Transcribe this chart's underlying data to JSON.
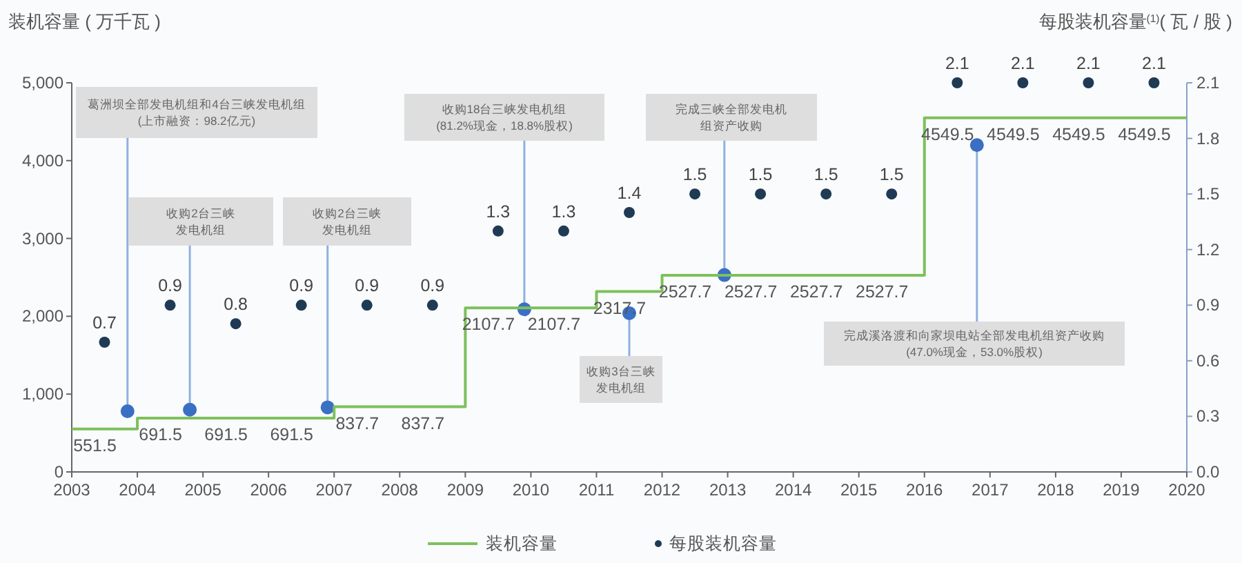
{
  "chart_data": {
    "type": "step",
    "ylabel": "装机容量 ( 万千瓦 )",
    "y2label": "每股装机容量$^{(1)}$( 瓦 / 股 )",
    "xlim": [
      2003,
      2020
    ],
    "xticks": [
      2003,
      2004,
      2005,
      2006,
      2007,
      2008,
      2009,
      2010,
      2011,
      2012,
      2013,
      2014,
      2015,
      2016,
      2017,
      2018,
      2019,
      2020
    ],
    "ylim": [
      0,
      5000
    ],
    "yticks": [
      0,
      {
        "value": 1000,
        "label": "1,000"
      },
      {
        "value": 2000,
        "label": "2,000"
      },
      {
        "value": 3000,
        "label": "3,000"
      },
      {
        "value": 4000,
        "label": "4,000"
      },
      {
        "value": 5000,
        "label": "5,000"
      }
    ],
    "y2lim": [
      0,
      2.1
    ],
    "y2ticks": [
      {
        "value": 0,
        "label": "0.0"
      },
      0.3,
      0.6,
      0.9,
      1.2,
      1.5,
      1.8,
      2.1
    ],
    "series": [
      {
        "name": "装机容量",
        "color": "#7cc15b",
        "x": [
          2003,
          2003.5,
          2004.5,
          2005.5,
          2006.5,
          2007.5,
          2008.5,
          2009.5,
          2010.5,
          2011.5,
          2012.5,
          2013.5,
          2014.5,
          2015.5,
          2016.5,
          2017.5,
          2018.5,
          2019.5,
          2020
        ],
        "values": [
          551.5,
          551.5,
          691.5,
          691.5,
          691.5,
          837.7,
          837.7,
          2107.7,
          2107.7,
          2317.7,
          2527.7,
          2527.7,
          2527.7,
          2527.7,
          4549.5,
          4549.5,
          4549.5,
          4549.5,
          4549.5
        ],
        "value_labels": [
          null,
          "551.5",
          "691.5",
          "691.5",
          "691.5",
          "837.7",
          "837.7",
          "2107.7",
          "2107.7",
          "2317.7",
          "2527.7",
          "2527.7",
          "2527.7",
          "2527.7",
          "4549.5",
          "4549.5",
          "4549.5",
          "4549.5",
          null
        ]
      },
      {
        "name": "每股装机容量",
        "type": "scatter",
        "axis": "y2",
        "marker": "circle",
        "color": "#1f3a55",
        "x": [
          2003.5,
          2004.5,
          2005.5,
          2006.5,
          2007.5,
          2008.5,
          2009.5,
          2010.5,
          2011.5,
          2012.5,
          2013.5,
          2014.5,
          2015.5,
          2016.5,
          2017.5,
          2018.5,
          2019.5
        ],
        "values": [
          0.7,
          0.9,
          0.8,
          0.9,
          0.9,
          0.9,
          1.3,
          1.3,
          1.4,
          1.5,
          1.5,
          1.5,
          1.5,
          2.1,
          2.1,
          2.1,
          2.1
        ]
      }
    ],
    "data_labels": true,
    "legend": "bottom",
    "grid": false,
    "annotations": [
      {
        "text": "葛洲坝全部发电机组和4台三峡发电机组(上市融资：98.2亿元)",
        "x": 2003.85,
        "y": 780
      },
      {
        "text": "收购2台三峡发电机组",
        "x": 2004.8,
        "y": 800
      },
      {
        "text": "收购2台三峡发电机组",
        "x": 2006.9,
        "y": 830
      },
      {
        "text": "收购18台三峡发电机组(81.2%现金，18.8%股权)",
        "x": 2009.9,
        "y": 2090
      },
      {
        "text": "收购3台三峡发电机组",
        "x": 2011.5,
        "y": 2040
      },
      {
        "text": "完成三峡全部发电机组资产收购",
        "x": 2012.95,
        "y": 2530
      },
      {
        "text": "完成溪洛渡和向家坝电站全部发电机组资产收购(47.0%现金，53.0%股权)",
        "x": 2016.8,
        "y": 4200
      }
    ]
  }
}
